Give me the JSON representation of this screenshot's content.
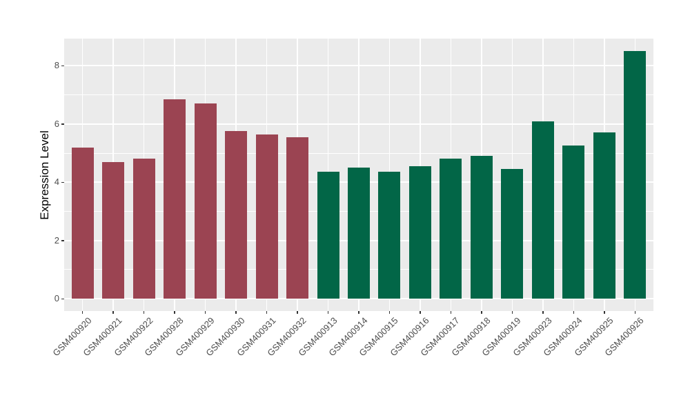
{
  "chart_data": {
    "type": "bar",
    "title": "",
    "xlabel": "",
    "ylabel": "Expression Level",
    "categories": [
      "GSM400920",
      "GSM400921",
      "GSM400922",
      "GSM400928",
      "GSM400929",
      "GSM400930",
      "GSM400931",
      "GSM400932",
      "GSM400913",
      "GSM400914",
      "GSM400915",
      "GSM400916",
      "GSM400917",
      "GSM400918",
      "GSM400919",
      "GSM400923",
      "GSM400924",
      "GSM400925",
      "GSM400926"
    ],
    "values": [
      5.2,
      4.7,
      4.8,
      6.85,
      6.7,
      5.75,
      5.65,
      5.55,
      4.35,
      4.5,
      4.35,
      4.55,
      4.8,
      4.9,
      4.45,
      6.1,
      5.25,
      5.7,
      8.5
    ],
    "bar_color_keys": [
      "maroon",
      "maroon",
      "maroon",
      "maroon",
      "maroon",
      "maroon",
      "maroon",
      "maroon",
      "green",
      "green",
      "green",
      "green",
      "green",
      "green",
      "green",
      "green",
      "green",
      "green",
      "green"
    ],
    "colors": {
      "maroon": "#9B4452",
      "green": "#026647",
      "panel_background": "#EBEBEB",
      "gridline": "#FFFFFF",
      "axis_text": "#4D4D4D",
      "tick_mark": "#333333",
      "axis_title": "#000000"
    },
    "yticks": [
      0,
      2,
      4,
      6,
      8
    ],
    "yticks_minor": [
      1,
      3,
      5,
      7
    ],
    "ylim": [
      -0.43,
      8.93
    ],
    "grid": true,
    "legend": "none"
  }
}
